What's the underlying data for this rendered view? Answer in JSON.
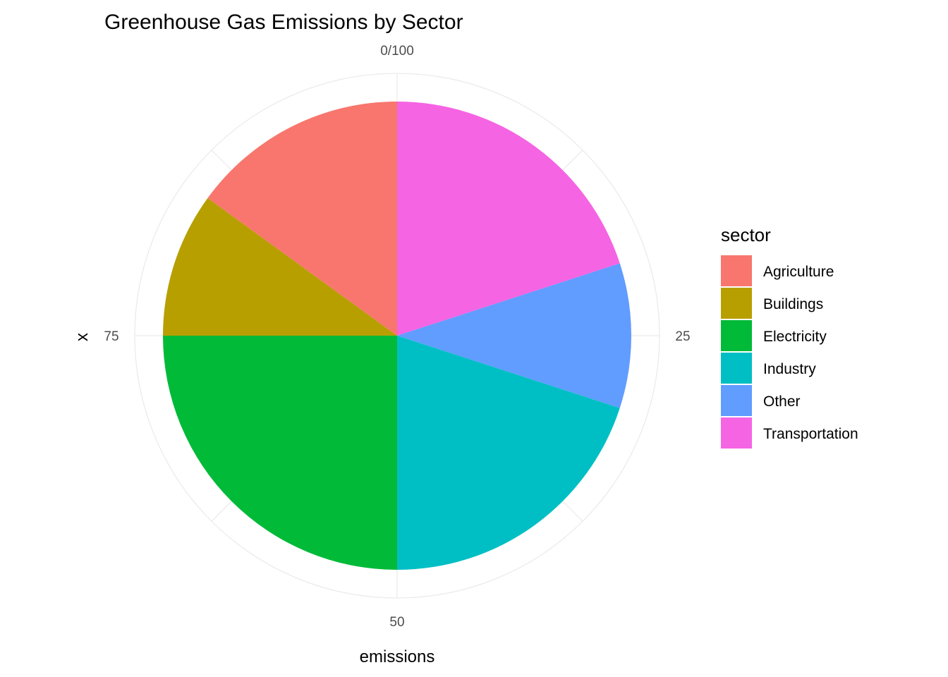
{
  "chart_data": {
    "type": "pie",
    "title": "Greenhouse Gas Emissions by Sector",
    "xlabel": "emissions",
    "ylabel": "x",
    "theta_ticks": [
      {
        "value": 0,
        "label": "0/100"
      },
      {
        "value": 25,
        "label": "25"
      },
      {
        "value": 50,
        "label": "50"
      },
      {
        "value": 75,
        "label": "75"
      }
    ],
    "total": 100,
    "direction": "clockwise",
    "slices": [
      {
        "label": "Transportation",
        "value": 20,
        "color": "#F564E3"
      },
      {
        "label": "Other",
        "value": 10,
        "color": "#619CFF"
      },
      {
        "label": "Industry",
        "value": 20,
        "color": "#00BFC4"
      },
      {
        "label": "Electricity",
        "value": 25,
        "color": "#00BA38"
      },
      {
        "label": "Buildings",
        "value": 10,
        "color": "#B79F00"
      },
      {
        "label": "Agriculture",
        "value": 15,
        "color": "#F8766D"
      }
    ],
    "legend": {
      "title": "sector",
      "position": "right",
      "items": [
        {
          "label": "Agriculture",
          "color": "#F8766D"
        },
        {
          "label": "Buildings",
          "color": "#B79F00"
        },
        {
          "label": "Electricity",
          "color": "#00BA38"
        },
        {
          "label": "Industry",
          "color": "#00BFC4"
        },
        {
          "label": "Other",
          "color": "#619CFF"
        },
        {
          "label": "Transportation",
          "color": "#F564E3"
        }
      ]
    },
    "grid": true
  }
}
